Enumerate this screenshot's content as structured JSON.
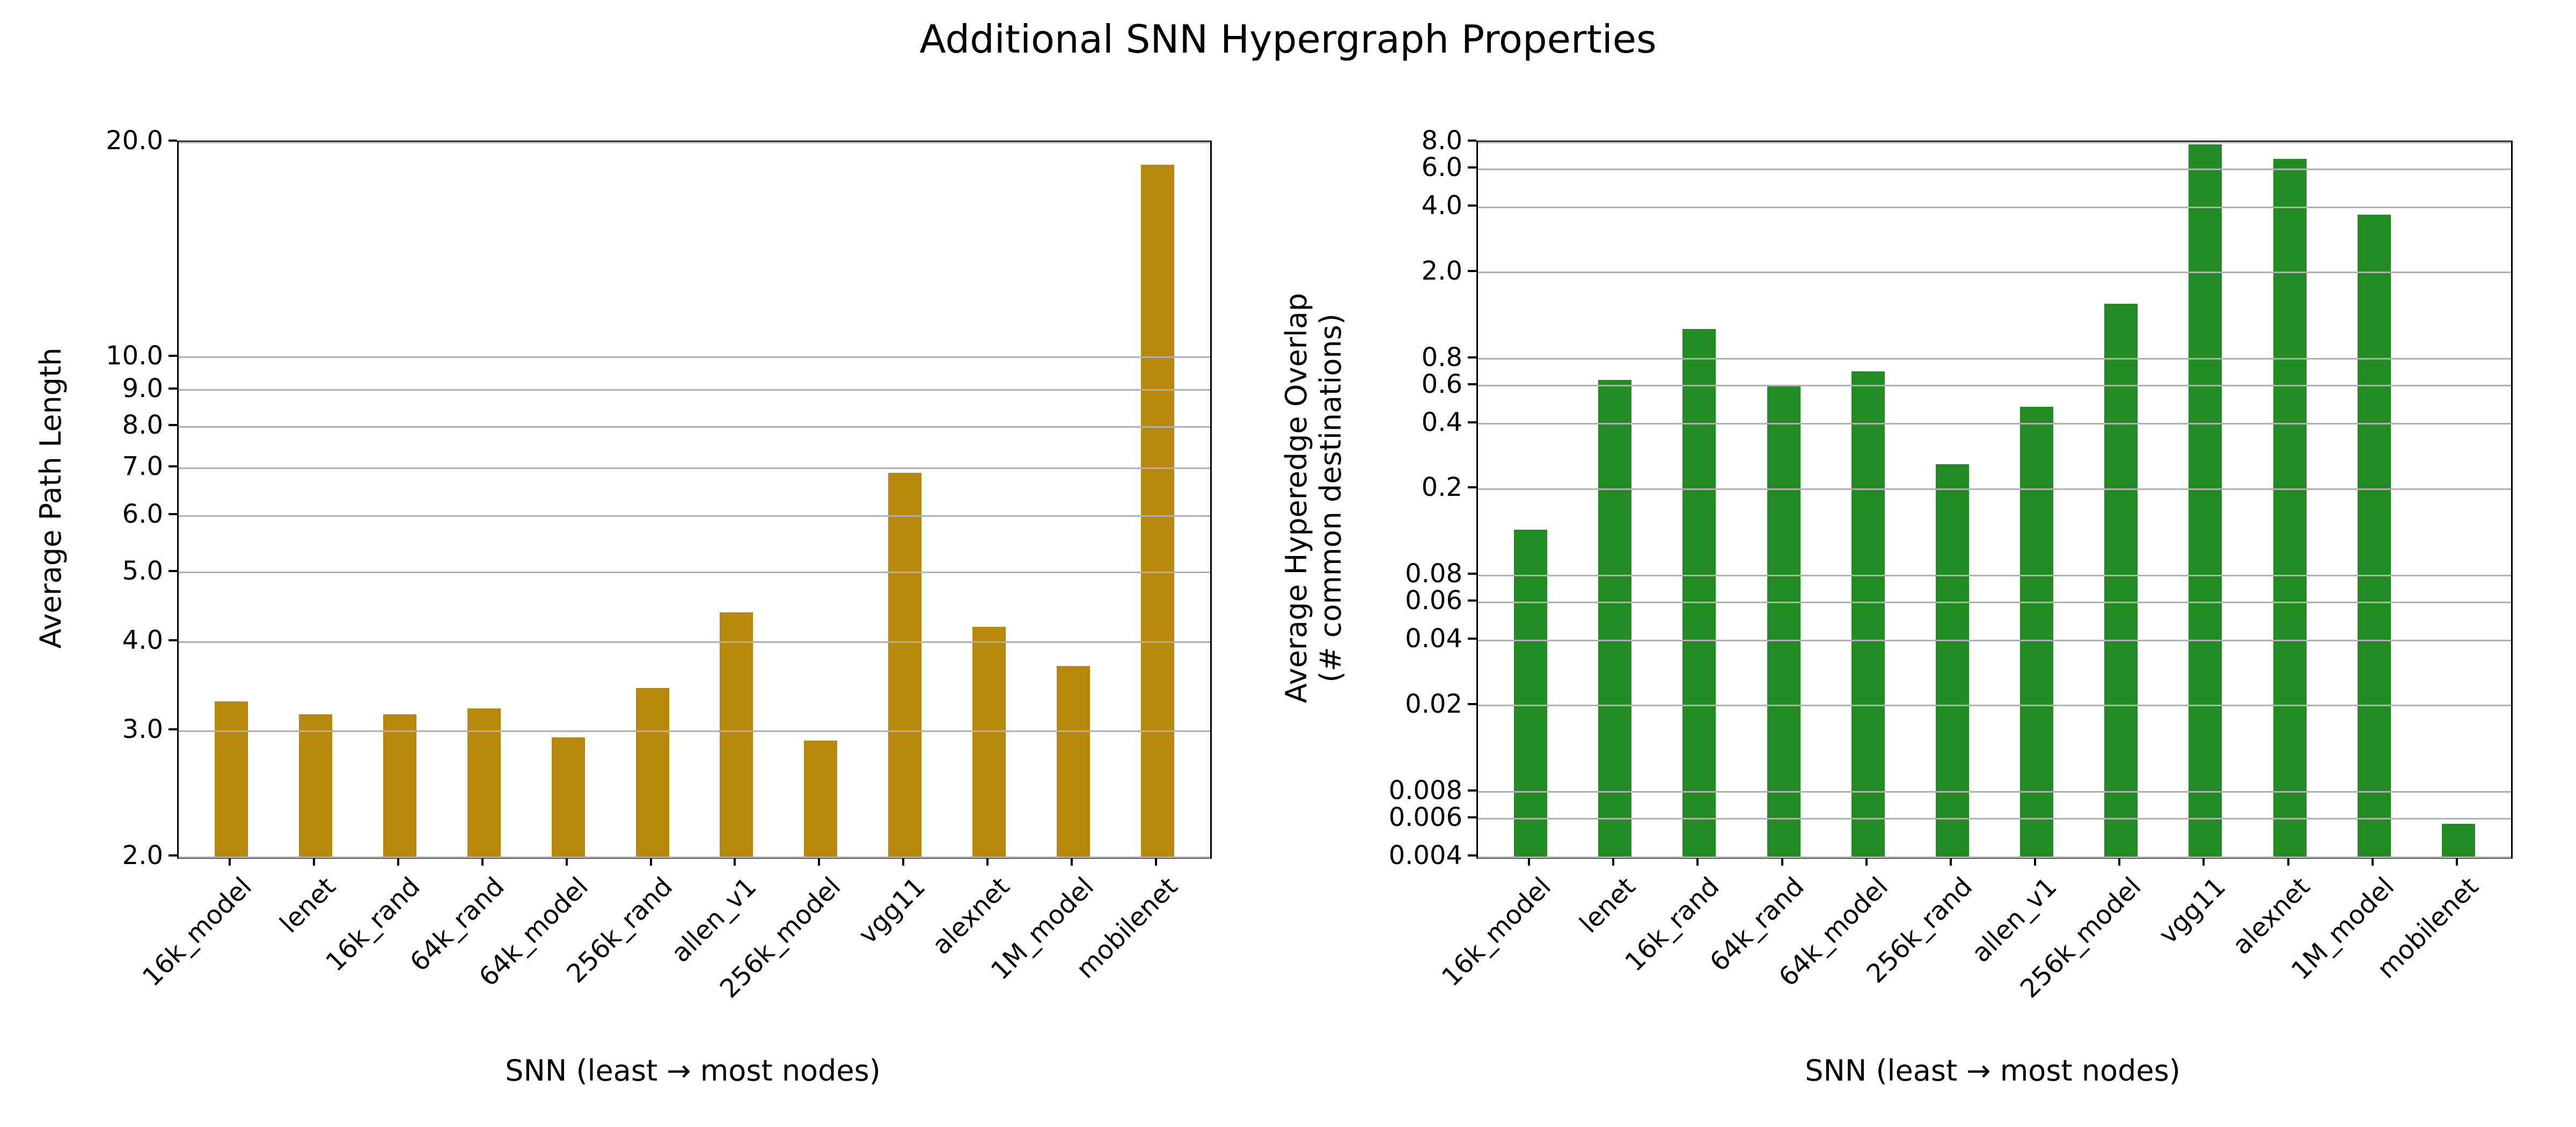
{
  "figure_title": "Additional SNN Hypergraph Properties",
  "chart_data": {
    "type": "bar",
    "title": "Additional SNN Hypergraph Properties",
    "grid": true,
    "legend": null,
    "categories": [
      "16k_model",
      "lenet",
      "16k_rand",
      "64k_rand",
      "64k_model",
      "256k_rand",
      "allen_v1",
      "256k_model",
      "vgg11",
      "alexnet",
      "1M_model",
      "mobilenet"
    ],
    "subplots": [
      {
        "ylabel": "Average Path Length",
        "ylabel_line2": "",
        "xlabel": "SNN (least → most nodes)",
        "yscale": "log",
        "ylim": [
          2.0,
          20.0
        ],
        "yticks": [
          20.0,
          10.0,
          9.0,
          8.0,
          7.0,
          6.0,
          5.0,
          4.0,
          3.0,
          2.0
        ],
        "ytick_labels": [
          "20.0",
          "10.0",
          "9.0",
          "8.0",
          "7.0",
          "6.0",
          "5.0",
          "4.0",
          "3.0",
          "2.0"
        ],
        "bar_color": "#B8860B",
        "values": [
          3.3,
          3.17,
          3.17,
          3.23,
          2.94,
          3.45,
          4.4,
          2.91,
          6.9,
          4.2,
          3.7,
          18.6
        ]
      },
      {
        "ylabel": "Average Hyperedge Overlap",
        "ylabel_line2": "(# common destinations)",
        "xlabel": "SNN (least → most nodes)",
        "yscale": "log",
        "ylim": [
          0.004,
          8.0
        ],
        "yticks": [
          8.0,
          6.0,
          4.0,
          2.0,
          0.8,
          0.6,
          0.4,
          0.2,
          0.08,
          0.06,
          0.04,
          0.02,
          0.008,
          0.006,
          0.004
        ],
        "ytick_labels": [
          "8.0",
          "6.0",
          "4.0",
          "2.0",
          "0.8",
          "0.6",
          "0.4",
          "0.2",
          "0.08",
          "0.06",
          "0.04",
          "0.02",
          "0.008",
          "0.006",
          "0.004"
        ],
        "bar_color": "#228B22",
        "values": [
          0.13,
          0.64,
          1.1,
          0.6,
          0.7,
          0.26,
          0.48,
          1.44,
          7.8,
          6.7,
          3.7,
          0.0057
        ]
      }
    ]
  },
  "colors": {
    "grid": "#b0b0b0",
    "spine": "#000000",
    "background": "#ffffff",
    "text": "#000000"
  }
}
